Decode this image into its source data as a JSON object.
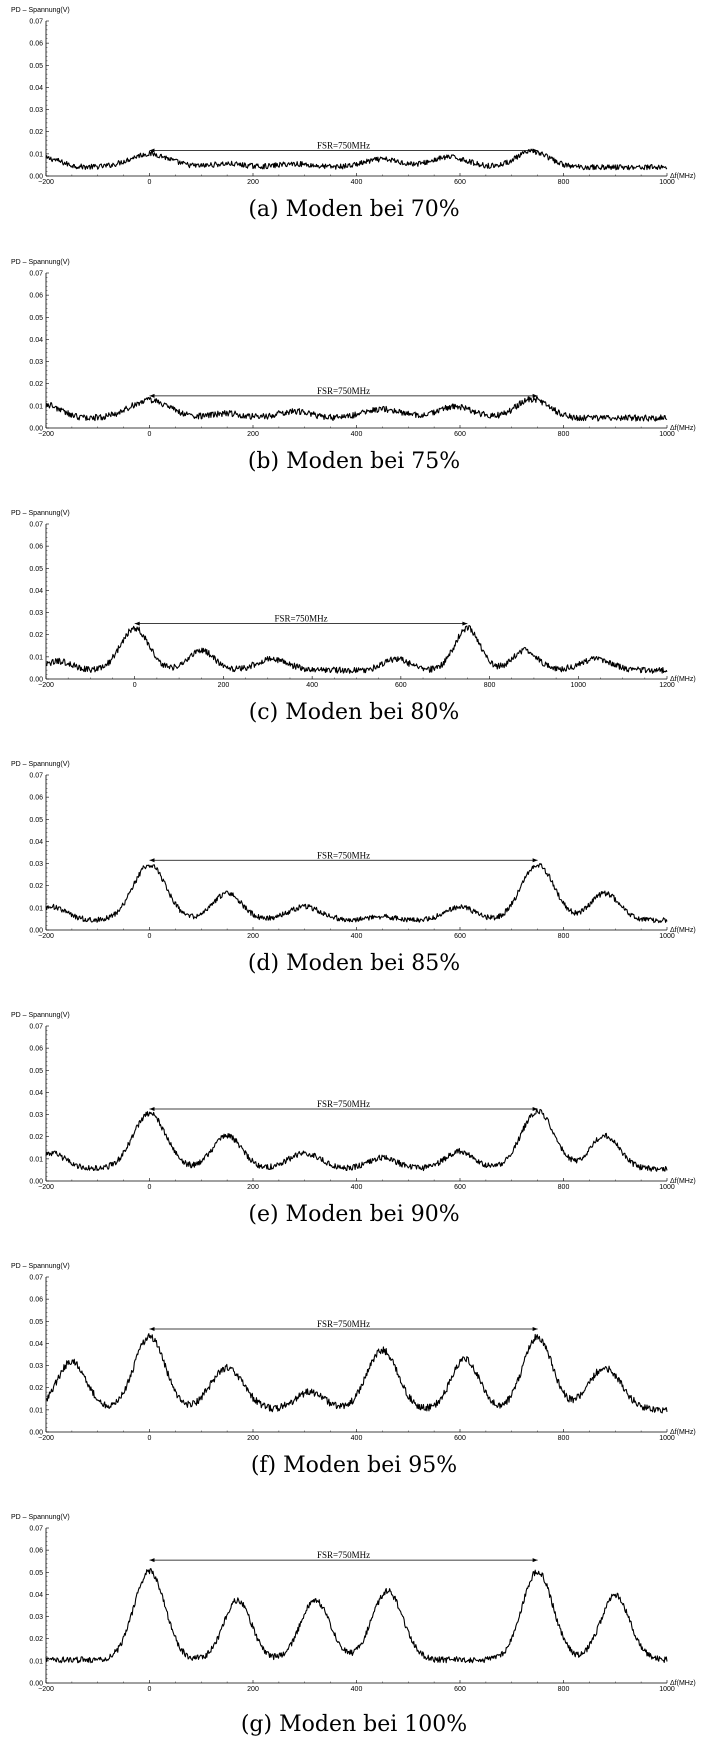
{
  "chart_data": [
    {
      "type": "line",
      "caption": "(a) Moden bei 70%",
      "ylabel": "PD – Spannung(V)",
      "xlabel": "Δf(MHz)",
      "xlim": [
        -200,
        1000
      ],
      "ylim": [
        0,
        0.07
      ],
      "xticks": [
        "-200",
        "0",
        "200",
        "400",
        "600",
        "800",
        "1000"
      ],
      "yticks": [
        "0.00",
        "0.01",
        "0.02",
        "0.03",
        "0.04",
        "0.05",
        "0.06",
        "0.07"
      ],
      "annotation": {
        "text": "FSR=750MHz",
        "from": 0,
        "to": 750,
        "y": 0.0115
      },
      "series": [
        {
          "base": 0.004,
          "noise": 0.0012,
          "peaks": [
            {
              "x": 0,
              "a": 0.006,
              "w": 55
            },
            {
              "x": 150,
              "a": 0.0015,
              "w": 45
            },
            {
              "x": 280,
              "a": 0.0015,
              "w": 45
            },
            {
              "x": 450,
              "a": 0.0035,
              "w": 50
            },
            {
              "x": 580,
              "a": 0.0045,
              "w": 50
            },
            {
              "x": 740,
              "a": 0.007,
              "w": 45
            },
            {
              "x": -200,
              "a": 0.004,
              "w": 40
            }
          ]
        }
      ]
    },
    {
      "type": "line",
      "caption": "(b) Moden bei 75%",
      "ylabel": "PD – Spannung(V)",
      "xlabel": "Δf(MHz)",
      "xlim": [
        -200,
        1000
      ],
      "ylim": [
        0,
        0.07
      ],
      "xticks": [
        "-200",
        "0",
        "200",
        "400",
        "600",
        "800",
        "1000"
      ],
      "yticks": [
        "0.00",
        "0.01",
        "0.02",
        "0.03",
        "0.04",
        "0.05",
        "0.06",
        "0.07"
      ],
      "annotation": {
        "text": "FSR=750MHz",
        "from": 0,
        "to": 750,
        "y": 0.0145
      },
      "series": [
        {
          "base": 0.0045,
          "noise": 0.0014,
          "peaks": [
            {
              "x": -200,
              "a": 0.006,
              "w": 40
            },
            {
              "x": 0,
              "a": 0.008,
              "w": 55
            },
            {
              "x": 150,
              "a": 0.002,
              "w": 45
            },
            {
              "x": 280,
              "a": 0.003,
              "w": 45
            },
            {
              "x": 450,
              "a": 0.004,
              "w": 50
            },
            {
              "x": 590,
              "a": 0.005,
              "w": 50
            },
            {
              "x": 740,
              "a": 0.0085,
              "w": 45
            }
          ]
        }
      ]
    },
    {
      "type": "line",
      "caption": "(c) Moden bei 80%",
      "ylabel": "PD – Spannung(V)",
      "xlabel": "Δf(MHz)",
      "xlim": [
        -200,
        1200
      ],
      "ylim": [
        0,
        0.07
      ],
      "xticks": [
        "-200",
        "0",
        "200",
        "400",
        "600",
        "800",
        "1000",
        "1200"
      ],
      "yticks": [
        "0.00",
        "0.01",
        "0.02",
        "0.03",
        "0.04",
        "0.05",
        "0.06",
        "0.07"
      ],
      "annotation": {
        "text": "FSR=750MHz",
        "from": 0,
        "to": 750,
        "y": 0.025
      },
      "series": [
        {
          "base": 0.004,
          "noise": 0.0014,
          "peaks": [
            {
              "x": -170,
              "a": 0.004,
              "w": 40
            },
            {
              "x": 0,
              "a": 0.019,
              "w": 45
            },
            {
              "x": 150,
              "a": 0.009,
              "w": 40
            },
            {
              "x": 310,
              "a": 0.005,
              "w": 50
            },
            {
              "x": 590,
              "a": 0.005,
              "w": 40
            },
            {
              "x": 750,
              "a": 0.019,
              "w": 40
            },
            {
              "x": 880,
              "a": 0.009,
              "w": 40
            },
            {
              "x": 1040,
              "a": 0.005,
              "w": 50
            }
          ]
        }
      ]
    },
    {
      "type": "line",
      "caption": "(d) Moden bei 85%",
      "ylabel": "PD – Spannung(V)",
      "xlabel": "Δf(MHz)",
      "xlim": [
        -200,
        1000
      ],
      "ylim": [
        0,
        0.07
      ],
      "xticks": [
        "-200",
        "0",
        "200",
        "400",
        "600",
        "800",
        "1000"
      ],
      "yticks": [
        "0.00",
        "0.01",
        "0.02",
        "0.03",
        "0.04",
        "0.05",
        "0.06",
        "0.07"
      ],
      "annotation": {
        "text": "FSR=750MHz",
        "from": 0,
        "to": 750,
        "y": 0.0315
      },
      "series": [
        {
          "base": 0.0045,
          "noise": 0.0012,
          "peaks": [
            {
              "x": -190,
              "a": 0.006,
              "w": 40
            },
            {
              "x": 0,
              "a": 0.025,
              "w": 45
            },
            {
              "x": 150,
              "a": 0.012,
              "w": 40
            },
            {
              "x": 300,
              "a": 0.006,
              "w": 45
            },
            {
              "x": 450,
              "a": 0.0015,
              "w": 40
            },
            {
              "x": 600,
              "a": 0.006,
              "w": 40
            },
            {
              "x": 750,
              "a": 0.025,
              "w": 45
            },
            {
              "x": 880,
              "a": 0.012,
              "w": 40
            }
          ]
        }
      ]
    },
    {
      "type": "line",
      "caption": "(e) Moden bei 90%",
      "ylabel": "PD – Spannung(V)",
      "xlabel": "Δf(MHz)",
      "xlim": [
        -200,
        1000
      ],
      "ylim": [
        0,
        0.07
      ],
      "xticks": [
        "-200",
        "0",
        "200",
        "400",
        "600",
        "800",
        "1000"
      ],
      "yticks": [
        "0.00",
        "0.01",
        "0.02",
        "0.03",
        "0.04",
        "0.05",
        "0.06",
        "0.07"
      ],
      "annotation": {
        "text": "FSR=750MHz",
        "from": 0,
        "to": 750,
        "y": 0.0325
      },
      "series": [
        {
          "base": 0.0055,
          "noise": 0.0013,
          "peaks": [
            {
              "x": -190,
              "a": 0.007,
              "w": 40
            },
            {
              "x": 0,
              "a": 0.025,
              "w": 45
            },
            {
              "x": 150,
              "a": 0.015,
              "w": 40
            },
            {
              "x": 300,
              "a": 0.007,
              "w": 45
            },
            {
              "x": 450,
              "a": 0.005,
              "w": 40
            },
            {
              "x": 600,
              "a": 0.008,
              "w": 40
            },
            {
              "x": 750,
              "a": 0.026,
              "w": 45
            },
            {
              "x": 880,
              "a": 0.015,
              "w": 40
            }
          ]
        }
      ]
    },
    {
      "type": "line",
      "caption": "(f) Moden bei 95%",
      "ylabel": "PD – Spannung(V)",
      "xlabel": "Δf(MHz)",
      "xlim": [
        -200,
        1000
      ],
      "ylim": [
        0,
        0.07
      ],
      "xticks": [
        "-200",
        "0",
        "200",
        "400",
        "600",
        "800",
        "1000"
      ],
      "yticks": [
        "0.00",
        "0.01",
        "0.02",
        "0.03",
        "0.04",
        "0.05",
        "0.06",
        "0.07"
      ],
      "annotation": {
        "text": "FSR=750MHz",
        "from": 0,
        "to": 750,
        "y": 0.0465
      },
      "series": [
        {
          "base": 0.01,
          "noise": 0.0016,
          "peaks": [
            {
              "x": -150,
              "a": 0.022,
              "w": 40
            },
            {
              "x": 0,
              "a": 0.033,
              "w": 42
            },
            {
              "x": 150,
              "a": 0.019,
              "w": 45
            },
            {
              "x": 310,
              "a": 0.008,
              "w": 40
            },
            {
              "x": 450,
              "a": 0.027,
              "w": 42
            },
            {
              "x": 610,
              "a": 0.023,
              "w": 38
            },
            {
              "x": 750,
              "a": 0.033,
              "w": 40
            },
            {
              "x": 880,
              "a": 0.019,
              "w": 45
            }
          ]
        }
      ]
    },
    {
      "type": "line",
      "caption": "(g) Moden bei 100%",
      "ylabel": "PD – Spannung(V)",
      "xlabel": "Δf(MHz)",
      "xlim": [
        -200,
        1000
      ],
      "ylim": [
        0,
        0.07
      ],
      "xticks": [
        "-200",
        "0",
        "200",
        "400",
        "600",
        "800",
        "1000"
      ],
      "yticks": [
        "0.00",
        "0.01",
        "0.02",
        "0.03",
        "0.04",
        "0.05",
        "0.06",
        "0.07"
      ],
      "annotation": {
        "text": "FSR=750MHz",
        "from": 0,
        "to": 750,
        "y": 0.0555
      },
      "series": [
        {
          "base": 0.0105,
          "noise": 0.0014,
          "peaks": [
            {
              "x": 0,
              "a": 0.04,
              "w": 42
            },
            {
              "x": 170,
              "a": 0.027,
              "w": 38
            },
            {
              "x": 320,
              "a": 0.027,
              "w": 40
            },
            {
              "x": 460,
              "a": 0.031,
              "w": 42
            },
            {
              "x": 750,
              "a": 0.04,
              "w": 42
            },
            {
              "x": 900,
              "a": 0.029,
              "w": 40
            }
          ]
        }
      ]
    }
  ]
}
